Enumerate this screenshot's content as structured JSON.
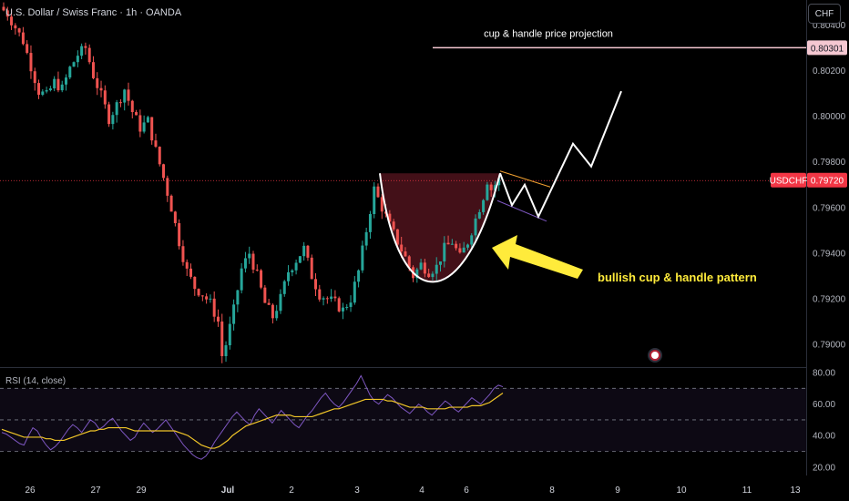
{
  "header": {
    "symbol_title": "U.S. Dollar / Swiss Franc · 1h · OANDA",
    "currency_button": "CHF"
  },
  "indicator": {
    "rsi_title": "RSI (14, close)"
  },
  "annotations": {
    "projection_label": "cup & handle price projection",
    "pattern_label": "bullish cup & handle pattern"
  },
  "colors": {
    "up": "#26a69a",
    "down": "#ef5350",
    "background": "#000000",
    "rsi_line": "#7e57c2",
    "rsi_ma": "#f0c528",
    "arrow": "#ffeb3b",
    "projection_line": "#f4c7d1",
    "price_tag": "#f23645"
  },
  "icons": {
    "news": "flag-icon"
  },
  "chart_data": [
    {
      "type": "candlestick",
      "title": "U.S. Dollar / Swiss Franc · 1h · OANDA",
      "symbol": "USDCHF",
      "timeframe": "1h",
      "x_ticks": [
        "26",
        "27",
        "29",
        "Jul",
        "2",
        "3",
        "4",
        "6",
        "8",
        "9",
        "10",
        "11",
        "13"
      ],
      "y_ticks": [
        "0.80400",
        "0.80200",
        "0.80000",
        "0.79800",
        "0.79600",
        "0.79400",
        "0.79200",
        "0.79000"
      ],
      "ylim": [
        0.789,
        0.8051
      ],
      "last_price": {
        "symbol": "USDCHF",
        "value": "0.79720"
      },
      "projection_level": {
        "value": "0.80301",
        "label": "cup & handle price projection"
      },
      "pattern": "bullish cup & handle pattern",
      "price_path": [
        [
          0,
          0.8048
        ],
        [
          2,
          0.8045
        ],
        [
          4,
          0.8039
        ],
        [
          6,
          0.8033
        ],
        [
          8,
          0.8022
        ],
        [
          10,
          0.8011
        ],
        [
          12,
          0.8009
        ],
        [
          14,
          0.8015
        ],
        [
          16,
          0.8012
        ],
        [
          18,
          0.8021
        ],
        [
          20,
          0.8027
        ],
        [
          22,
          0.803
        ],
        [
          24,
          0.8018
        ],
        [
          26,
          0.8009
        ],
        [
          28,
          0.7999
        ],
        [
          30,
          0.8005
        ],
        [
          32,
          0.8012
        ],
        [
          34,
          0.8002
        ],
        [
          36,
          0.7995
        ],
        [
          38,
          0.7998
        ],
        [
          40,
          0.7985
        ],
        [
          42,
          0.7973
        ],
        [
          44,
          0.796
        ],
        [
          46,
          0.7945
        ],
        [
          48,
          0.7932
        ],
        [
          50,
          0.7925
        ],
        [
          52,
          0.7922
        ],
        [
          54,
          0.7918
        ],
        [
          56,
          0.791
        ],
        [
          57,
          0.7895
        ],
        [
          58,
          0.79
        ],
        [
          60,
          0.7915
        ],
        [
          62,
          0.7933
        ],
        [
          64,
          0.794
        ],
        [
          66,
          0.793
        ],
        [
          68,
          0.7918
        ],
        [
          70,
          0.7912
        ],
        [
          72,
          0.792
        ],
        [
          74,
          0.7932
        ],
        [
          76,
          0.7937
        ],
        [
          78,
          0.7942
        ],
        [
          80,
          0.793
        ],
        [
          82,
          0.7922
        ],
        [
          84,
          0.792
        ],
        [
          86,
          0.7918
        ],
        [
          88,
          0.7915
        ],
        [
          90,
          0.792
        ],
        [
          92,
          0.7932
        ],
        [
          94,
          0.795
        ],
        [
          96,
          0.7968
        ],
        [
          98,
          0.796
        ],
        [
          100,
          0.7952
        ],
        [
          102,
          0.7945
        ],
        [
          104,
          0.7938
        ],
        [
          106,
          0.793
        ],
        [
          108,
          0.7935
        ],
        [
          110,
          0.7932
        ],
        [
          112,
          0.7934
        ],
        [
          114,
          0.7942
        ],
        [
          116,
          0.7945
        ],
        [
          118,
          0.7938
        ],
        [
          120,
          0.7945
        ],
        [
          122,
          0.7955
        ],
        [
          124,
          0.7965
        ],
        [
          125,
          0.7972
        ],
        [
          126,
          0.7968
        ],
        [
          127,
          0.797
        ],
        [
          128,
          0.7972
        ]
      ],
      "candle_count": 128,
      "x_day_index": {
        "26": 6,
        "27": 22,
        "29": 34,
        "Jul": 57,
        "2": 72,
        "3": 89,
        "4": 105,
        "6": 118
      }
    },
    {
      "type": "line",
      "title": "RSI (14, close)",
      "y_ticks": [
        "80.00",
        "60.00",
        "40.00",
        "20.00"
      ],
      "ylim": [
        20,
        80
      ],
      "bands": [
        30,
        50,
        70
      ],
      "series": [
        {
          "values": [
            42,
            41,
            39,
            37,
            35,
            34,
            40,
            45,
            43,
            38,
            34,
            31,
            33,
            36,
            40,
            44,
            47,
            45,
            42,
            46,
            50,
            48,
            44,
            46,
            49,
            51,
            47,
            43,
            40,
            37,
            39,
            44,
            48,
            45,
            42,
            44,
            47,
            50,
            46,
            42,
            38,
            34,
            31,
            28,
            26,
            25,
            27,
            31,
            36,
            40,
            44,
            48,
            52,
            55,
            52,
            49,
            47,
            53,
            57,
            54,
            51,
            48,
            52,
            56,
            53,
            50,
            47,
            45,
            49,
            53,
            56,
            60,
            64,
            67,
            63,
            60,
            58,
            61,
            65,
            69,
            73,
            78,
            72,
            66,
            62,
            60,
            63,
            66,
            64,
            61,
            58,
            56,
            54,
            57,
            60,
            58,
            55,
            53,
            56,
            59,
            62,
            60,
            57,
            55,
            58,
            61,
            64,
            62,
            60,
            63,
            66,
            70,
            72,
            71
          ]
        },
        {
          "values": [
            44,
            43,
            42,
            41,
            40,
            39,
            39,
            39,
            39,
            39,
            38,
            38,
            37,
            37,
            37,
            38,
            39,
            40,
            41,
            42,
            43,
            43,
            44,
            44,
            45,
            45,
            45,
            45,
            45,
            44,
            43,
            43,
            43,
            43,
            43,
            43,
            43,
            43,
            43,
            43,
            42,
            41,
            40,
            38,
            36,
            34,
            33,
            32,
            32,
            33,
            35,
            37,
            40,
            42,
            44,
            46,
            47,
            48,
            49,
            50,
            51,
            52,
            53,
            53,
            53,
            53,
            52,
            52,
            52,
            52,
            52,
            53,
            54,
            55,
            56,
            57,
            57,
            58,
            59,
            60,
            61,
            62,
            63,
            63,
            63,
            63,
            63,
            62,
            62,
            61,
            60,
            59,
            58,
            58,
            58,
            58,
            57,
            57,
            57,
            57,
            57,
            58,
            58,
            58,
            58,
            58,
            59,
            59,
            59,
            60,
            61,
            63,
            65,
            67
          ]
        }
      ]
    }
  ]
}
